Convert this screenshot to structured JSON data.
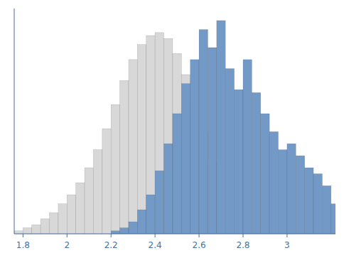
{
  "chart_data": {
    "type": "histogram",
    "series": [
      {
        "color": "#d8d8d8",
        "bins": [
          1.76,
          1.8,
          1.84,
          1.88,
          1.92,
          1.96,
          2.0,
          2.04,
          2.08,
          2.12,
          2.16,
          2.2,
          2.24,
          2.28,
          2.32,
          2.36,
          2.4,
          2.44,
          2.48,
          2.52,
          2.56,
          2.6,
          2.64,
          2.68
        ],
        "values": [
          1,
          2,
          3,
          5,
          7,
          10,
          13,
          17,
          22,
          28,
          35,
          43,
          51,
          58,
          63,
          66,
          67,
          65,
          60,
          53,
          44,
          34,
          24
        ]
      },
      {
        "color": "#7399c6",
        "bins": [
          2.2,
          2.24,
          2.28,
          2.32,
          2.36,
          2.4,
          2.44,
          2.48,
          2.52,
          2.56,
          2.6,
          2.64,
          2.68,
          2.72,
          2.76,
          2.8,
          2.84,
          2.88,
          2.92,
          2.96,
          3.0,
          3.04,
          3.08,
          3.12,
          3.16,
          3.2,
          3.24
        ],
        "values": [
          1,
          2,
          4,
          8,
          13,
          21,
          30,
          40,
          50,
          58,
          68,
          62,
          71,
          55,
          48,
          58,
          47,
          40,
          34,
          28,
          30,
          26,
          22,
          20,
          16,
          10
        ]
      }
    ],
    "xlim": [
      1.76,
      3.22
    ],
    "ylim": [
      0,
      75
    ],
    "xticks": [
      1.8,
      2,
      2.2,
      2.4,
      2.6,
      2.8,
      3
    ],
    "yticks": [],
    "tick_labels": "x",
    "grid": false
  }
}
